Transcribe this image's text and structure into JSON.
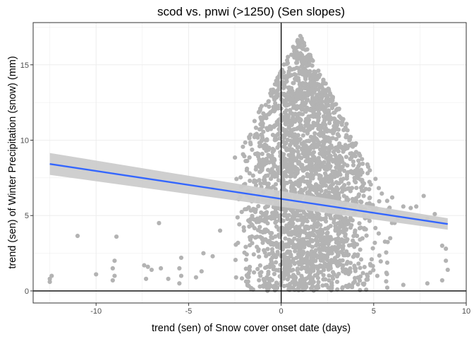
{
  "chart_data": {
    "type": "scatter",
    "title": "scod vs. pnwi (>1250) (Sen slopes)",
    "xlabel": "trend (sen) of Snow cover onset date (days)",
    "ylabel": "trend (sen) of Winter Precipitation (snow) (mm)",
    "xlim": [
      -13.4,
      10.0
    ],
    "ylim": [
      -0.8,
      17.8
    ],
    "xticks": [
      -10,
      -5,
      0,
      5,
      10
    ],
    "yticks": [
      0,
      5,
      10,
      15
    ],
    "grid": true,
    "reference_lines": {
      "x": 0,
      "y": 0
    },
    "scatter_color": "#b3b3b3",
    "fit_color": "#3366ff",
    "ribbon_color": "#cccccc",
    "isolated_points": [
      {
        "x": -12.5,
        "y": 0.6
      },
      {
        "x": -12.5,
        "y": 0.8
      },
      {
        "x": -12.4,
        "y": 1.0
      },
      {
        "x": -11.0,
        "y": 3.65
      },
      {
        "x": -10.0,
        "y": 1.1
      },
      {
        "x": -8.9,
        "y": 3.6
      },
      {
        "x": -9.0,
        "y": 2.0
      },
      {
        "x": -9.1,
        "y": 1.5
      },
      {
        "x": -9.0,
        "y": 1.0
      },
      {
        "x": -9.1,
        "y": 0.7
      },
      {
        "x": -6.6,
        "y": 4.5
      },
      {
        "x": -7.4,
        "y": 1.7
      },
      {
        "x": -7.2,
        "y": 1.6
      },
      {
        "x": -7.0,
        "y": 1.4
      },
      {
        "x": -6.5,
        "y": 1.5
      },
      {
        "x": -7.3,
        "y": 0.8
      },
      {
        "x": -6.1,
        "y": 0.8
      },
      {
        "x": -5.4,
        "y": 2.2
      },
      {
        "x": -5.5,
        "y": 1.5
      },
      {
        "x": -5.4,
        "y": 1.0
      },
      {
        "x": -5.5,
        "y": 0.5
      },
      {
        "x": -4.6,
        "y": 0.9
      },
      {
        "x": -4.2,
        "y": 2.5
      },
      {
        "x": -4.3,
        "y": 1.3
      },
      {
        "x": -3.7,
        "y": 6.8
      },
      {
        "x": -3.7,
        "y": 2.3
      },
      {
        "x": -3.3,
        "y": 4.0
      },
      {
        "x": 6.0,
        "y": 6.2
      },
      {
        "x": 6.3,
        "y": 4.8
      },
      {
        "x": 6.6,
        "y": 5.6
      },
      {
        "x": 7.0,
        "y": 5.5
      },
      {
        "x": 7.3,
        "y": 5.6
      },
      {
        "x": 7.7,
        "y": 6.3
      },
      {
        "x": 7.9,
        "y": 4.8
      },
      {
        "x": 8.3,
        "y": 5.1
      },
      {
        "x": 8.7,
        "y": 3.0
      },
      {
        "x": 8.9,
        "y": 2.8
      },
      {
        "x": 8.9,
        "y": 2.0
      },
      {
        "x": 9.0,
        "y": 1.4
      },
      {
        "x": 8.7,
        "y": 0.7
      },
      {
        "x": 7.9,
        "y": 0.5
      },
      {
        "x": 6.6,
        "y": 0.4
      }
    ],
    "dense_cluster": {
      "point_count": 2600,
      "x_center": 1.3,
      "x_spread": 1.7,
      "x_range": [
        -2.5,
        6.3
      ],
      "y_range": [
        0.0,
        17.2
      ]
    },
    "trend_line": {
      "x": [
        -12.5,
        9.0
      ],
      "y": [
        8.42,
        4.44
      ],
      "ci_low": [
        7.7,
        4.06
      ],
      "ci_high": [
        9.15,
        4.82
      ]
    }
  }
}
